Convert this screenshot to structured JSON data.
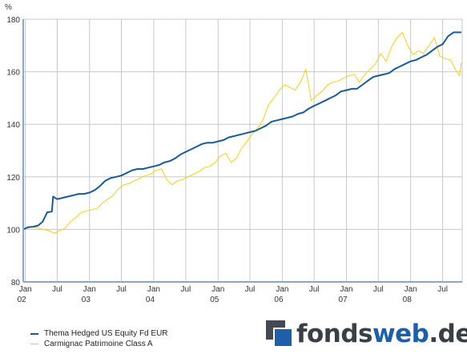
{
  "chart_data": {
    "type": "line",
    "title": "",
    "xlabel": "",
    "ylabel": "%",
    "ylim": [
      80,
      180
    ],
    "xlim": [
      "2001-12-20",
      "2008-10-20"
    ],
    "yticks": [
      80,
      100,
      120,
      140,
      160,
      180
    ],
    "xticks": [
      {
        "date": "2002-01-01",
        "label": "Jan",
        "year": "02"
      },
      {
        "date": "2002-07-01",
        "label": "Jul",
        "year": ""
      },
      {
        "date": "2003-01-01",
        "label": "Jan",
        "year": "03"
      },
      {
        "date": "2003-07-01",
        "label": "Jul",
        "year": ""
      },
      {
        "date": "2004-01-01",
        "label": "Jan",
        "year": "04"
      },
      {
        "date": "2004-07-01",
        "label": "Jul",
        "year": ""
      },
      {
        "date": "2005-01-01",
        "label": "Jan",
        "year": "05"
      },
      {
        "date": "2005-07-01",
        "label": "Jul",
        "year": ""
      },
      {
        "date": "2006-01-01",
        "label": "Jan",
        "year": "06"
      },
      {
        "date": "2006-07-01",
        "label": "Jul",
        "year": ""
      },
      {
        "date": "2007-01-01",
        "label": "Jan",
        "year": "07"
      },
      {
        "date": "2007-07-01",
        "label": "Jul",
        "year": ""
      },
      {
        "date": "2008-01-01",
        "label": "Jan",
        "year": "08"
      },
      {
        "date": "2008-07-01",
        "label": "Jul",
        "year": ""
      }
    ],
    "grid": true,
    "legend_position": "bottom-left",
    "series": [
      {
        "name": "Thema Hedged US Equity Fd EUR",
        "color": "#1a5a96",
        "points": [
          [
            "2001-12-20",
            100
          ],
          [
            "2002-01-15",
            100.8
          ],
          [
            "2002-02-15",
            101
          ],
          [
            "2002-03-15",
            101.5
          ],
          [
            "2002-04-10",
            103
          ],
          [
            "2002-05-05",
            106.5
          ],
          [
            "2002-06-01",
            106.8
          ],
          [
            "2002-06-08",
            112.5
          ],
          [
            "2002-07-01",
            111.5
          ],
          [
            "2002-08-01",
            112
          ],
          [
            "2002-09-01",
            112.5
          ],
          [
            "2002-10-01",
            113
          ],
          [
            "2002-11-01",
            113.5
          ],
          [
            "2002-12-01",
            113.5
          ],
          [
            "2003-01-01",
            114
          ],
          [
            "2003-02-01",
            115
          ],
          [
            "2003-03-01",
            116.5
          ],
          [
            "2003-04-01",
            118.5
          ],
          [
            "2003-05-01",
            119.5
          ],
          [
            "2003-06-01",
            120
          ],
          [
            "2003-07-01",
            120.5
          ],
          [
            "2003-08-01",
            121.5
          ],
          [
            "2003-09-01",
            122.5
          ],
          [
            "2003-10-01",
            123
          ],
          [
            "2003-11-01",
            123
          ],
          [
            "2003-12-01",
            123.5
          ],
          [
            "2004-01-01",
            124
          ],
          [
            "2004-02-01",
            124.5
          ],
          [
            "2004-03-01",
            125.5
          ],
          [
            "2004-04-01",
            126
          ],
          [
            "2004-05-01",
            127
          ],
          [
            "2004-06-01",
            128.5
          ],
          [
            "2004-07-01",
            129.5
          ],
          [
            "2004-08-01",
            130.5
          ],
          [
            "2004-09-01",
            131.5
          ],
          [
            "2004-10-01",
            132.5
          ],
          [
            "2004-11-01",
            133
          ],
          [
            "2004-12-01",
            133
          ],
          [
            "2005-01-01",
            133.5
          ],
          [
            "2005-02-01",
            134
          ],
          [
            "2005-03-01",
            135
          ],
          [
            "2005-04-01",
            135.5
          ],
          [
            "2005-05-01",
            136
          ],
          [
            "2005-06-01",
            136.5
          ],
          [
            "2005-07-01",
            137
          ],
          [
            "2005-08-01",
            137.5
          ],
          [
            "2005-09-01",
            138.5
          ],
          [
            "2005-10-01",
            139.5
          ],
          [
            "2005-11-01",
            141
          ],
          [
            "2005-12-01",
            141.5
          ],
          [
            "2006-01-01",
            142
          ],
          [
            "2006-02-01",
            142.5
          ],
          [
            "2006-03-01",
            143
          ],
          [
            "2006-04-01",
            144
          ],
          [
            "2006-05-01",
            144.5
          ],
          [
            "2006-06-01",
            146
          ],
          [
            "2006-07-01",
            147
          ],
          [
            "2006-08-01",
            148
          ],
          [
            "2006-09-01",
            149
          ],
          [
            "2006-10-01",
            150
          ],
          [
            "2006-11-01",
            151
          ],
          [
            "2006-12-01",
            152.5
          ],
          [
            "2007-01-01",
            153
          ],
          [
            "2007-02-01",
            153.5
          ],
          [
            "2007-03-01",
            153.5
          ],
          [
            "2007-04-01",
            155
          ],
          [
            "2007-05-01",
            156.5
          ],
          [
            "2007-06-01",
            158
          ],
          [
            "2007-07-01",
            158.5
          ],
          [
            "2007-08-01",
            159
          ],
          [
            "2007-09-01",
            159.5
          ],
          [
            "2007-10-01",
            161
          ],
          [
            "2007-11-01",
            162
          ],
          [
            "2007-12-01",
            163
          ],
          [
            "2008-01-01",
            164
          ],
          [
            "2008-02-01",
            164.5
          ],
          [
            "2008-03-01",
            165.5
          ],
          [
            "2008-04-01",
            166.5
          ],
          [
            "2008-05-01",
            168
          ],
          [
            "2008-06-01",
            169.5
          ],
          [
            "2008-07-01",
            170.5
          ],
          [
            "2008-08-01",
            173.5
          ],
          [
            "2008-09-01",
            175
          ],
          [
            "2008-10-15",
            175
          ]
        ]
      },
      {
        "name": "Carmignac Patrimoine Class A",
        "color": "#f2cf1e",
        "points": [
          [
            "2001-12-20",
            100
          ],
          [
            "2002-01-15",
            100.5
          ],
          [
            "2002-02-15",
            101
          ],
          [
            "2002-03-15",
            100.5
          ],
          [
            "2002-04-15",
            100
          ],
          [
            "2002-05-15",
            99.5
          ],
          [
            "2002-06-15",
            98.5
          ],
          [
            "2002-07-15",
            99.5
          ],
          [
            "2002-08-15",
            100.5
          ],
          [
            "2002-09-15",
            103
          ],
          [
            "2002-10-15",
            104.5
          ],
          [
            "2002-11-15",
            106.5
          ],
          [
            "2002-12-15",
            107
          ],
          [
            "2003-01-15",
            107.5
          ],
          [
            "2003-02-15",
            108
          ],
          [
            "2003-03-15",
            110
          ],
          [
            "2003-04-15",
            111.5
          ],
          [
            "2003-05-15",
            113
          ],
          [
            "2003-06-15",
            115.5
          ],
          [
            "2003-07-15",
            117
          ],
          [
            "2003-08-15",
            117.5
          ],
          [
            "2003-09-15",
            118.5
          ],
          [
            "2003-10-15",
            119.5
          ],
          [
            "2003-11-15",
            120.5
          ],
          [
            "2003-12-15",
            121
          ],
          [
            "2004-01-15",
            122.5
          ],
          [
            "2004-02-15",
            123
          ],
          [
            "2004-03-15",
            119
          ],
          [
            "2004-04-15",
            117
          ],
          [
            "2004-05-15",
            118.5
          ],
          [
            "2004-06-15",
            119
          ],
          [
            "2004-07-15",
            120
          ],
          [
            "2004-08-15",
            121
          ],
          [
            "2004-09-15",
            122
          ],
          [
            "2004-10-15",
            123.5
          ],
          [
            "2004-11-15",
            124
          ],
          [
            "2004-12-15",
            125.5
          ],
          [
            "2005-01-15",
            128
          ],
          [
            "2005-02-15",
            129
          ],
          [
            "2005-03-15",
            125.5
          ],
          [
            "2005-04-15",
            127
          ],
          [
            "2005-05-15",
            131
          ],
          [
            "2005-06-15",
            133.5
          ],
          [
            "2005-07-15",
            136.5
          ],
          [
            "2005-08-15",
            138.5
          ],
          [
            "2005-09-15",
            142
          ],
          [
            "2005-10-15",
            147.5
          ],
          [
            "2005-11-15",
            150
          ],
          [
            "2005-12-15",
            153
          ],
          [
            "2006-01-15",
            155
          ],
          [
            "2006-02-15",
            154
          ],
          [
            "2006-03-15",
            153
          ],
          [
            "2006-04-15",
            156
          ],
          [
            "2006-05-15",
            161
          ],
          [
            "2006-06-15",
            149
          ],
          [
            "2006-07-15",
            151
          ],
          [
            "2006-08-15",
            152.5
          ],
          [
            "2006-09-15",
            155
          ],
          [
            "2006-10-15",
            156
          ],
          [
            "2006-11-15",
            156.5
          ],
          [
            "2006-12-15",
            157.5
          ],
          [
            "2007-01-15",
            158.5
          ],
          [
            "2007-02-15",
            159
          ],
          [
            "2007-03-15",
            156
          ],
          [
            "2007-04-15",
            159
          ],
          [
            "2007-05-15",
            161
          ],
          [
            "2007-06-15",
            163
          ],
          [
            "2007-07-15",
            167
          ],
          [
            "2007-08-15",
            164
          ],
          [
            "2007-09-15",
            169.5
          ],
          [
            "2007-10-15",
            173
          ],
          [
            "2007-11-15",
            175
          ],
          [
            "2007-12-15",
            170
          ],
          [
            "2008-01-15",
            166.5
          ],
          [
            "2008-02-15",
            168
          ],
          [
            "2008-03-15",
            167
          ],
          [
            "2008-04-15",
            170
          ],
          [
            "2008-05-15",
            173
          ],
          [
            "2008-06-15",
            166
          ],
          [
            "2008-07-15",
            165
          ],
          [
            "2008-08-15",
            164.5
          ],
          [
            "2008-09-15",
            160.5
          ],
          [
            "2008-10-05",
            158.5
          ],
          [
            "2008-10-15",
            163.5
          ]
        ]
      }
    ]
  },
  "logo": {
    "part1": "fonds",
    "part2": "web",
    "part3": ".de"
  }
}
